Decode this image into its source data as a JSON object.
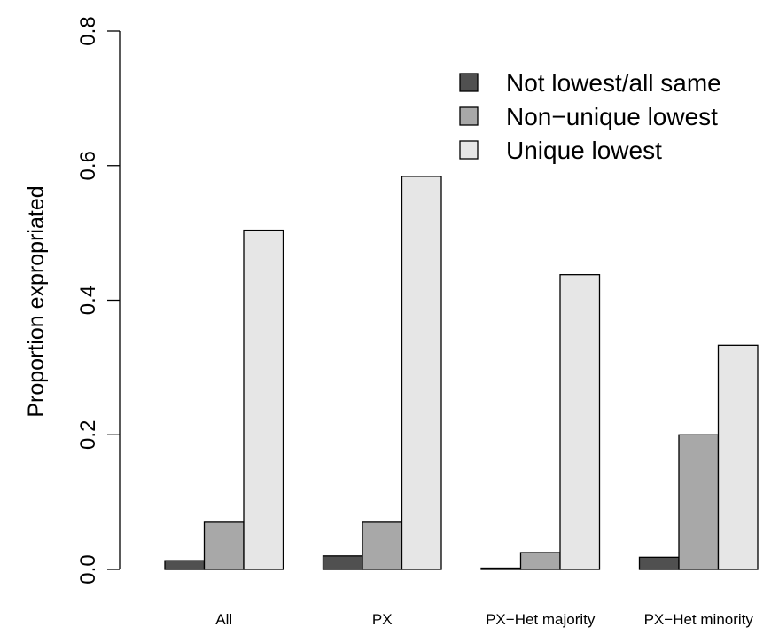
{
  "chart_data": {
    "type": "bar",
    "title": "",
    "xlabel": "",
    "ylabel": "Proportion expropriated",
    "ylim": [
      0,
      0.8
    ],
    "yticks": [
      0.0,
      0.2,
      0.4,
      0.6,
      0.8
    ],
    "ytick_labels": [
      "0.0",
      "0.2",
      "0.4",
      "0.6",
      "0.8"
    ],
    "categories": [
      "All",
      "PX",
      "PX−Het majority",
      "PX−Het minority"
    ],
    "series": [
      {
        "name": "Not lowest/all same",
        "color": "#505050",
        "values": [
          0.013,
          0.02,
          0.002,
          0.018
        ]
      },
      {
        "name": "Non−unique lowest",
        "color": "#a8a8a8",
        "values": [
          0.07,
          0.07,
          0.025,
          0.2
        ]
      },
      {
        "name": "Unique lowest",
        "color": "#e6e6e6",
        "values": [
          0.504,
          0.584,
          0.438,
          0.333
        ]
      }
    ],
    "legend_position": "top-right",
    "grid": false
  }
}
